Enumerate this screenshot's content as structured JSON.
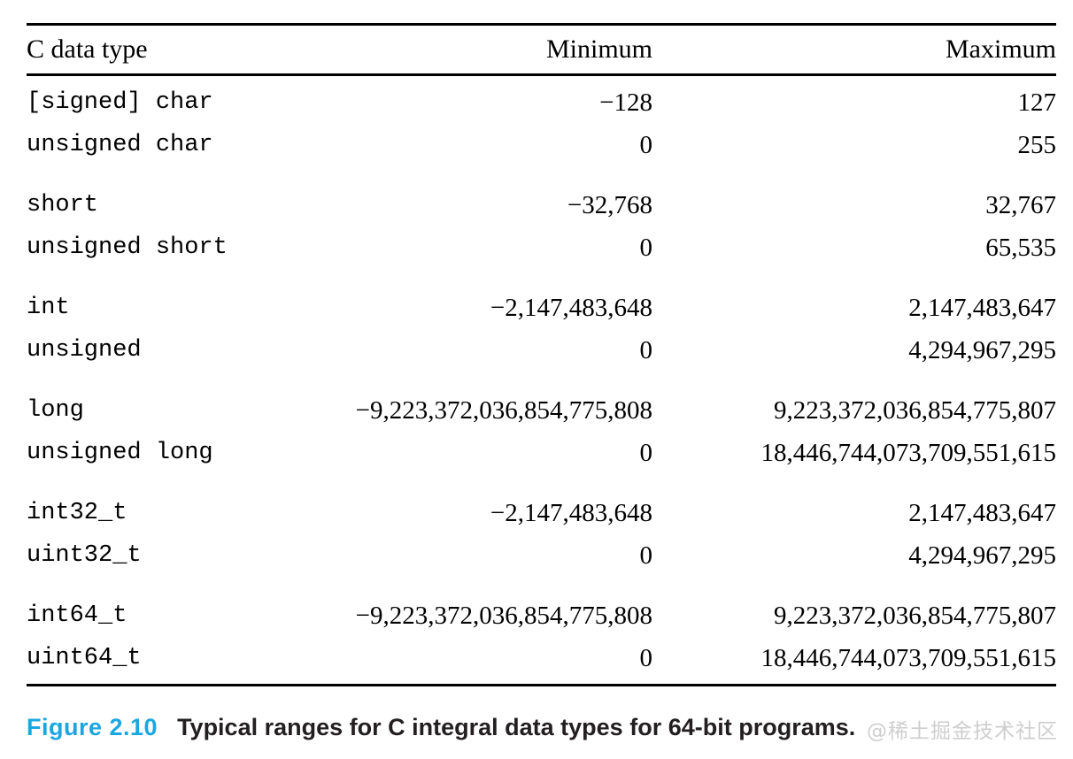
{
  "table": {
    "headers": {
      "type": "C data type",
      "min": "Minimum",
      "max": "Maximum"
    },
    "groups": [
      [
        {
          "type": "[signed] char",
          "min": "−128",
          "max": "127"
        },
        {
          "type": "unsigned char",
          "min": "0",
          "max": "255"
        }
      ],
      [
        {
          "type": "short",
          "min": "−32,768",
          "max": "32,767"
        },
        {
          "type": "unsigned short",
          "min": "0",
          "max": "65,535"
        }
      ],
      [
        {
          "type": "int",
          "min": "−2,147,483,648",
          "max": "2,147,483,647"
        },
        {
          "type": "unsigned",
          "min": "0",
          "max": "4,294,967,295"
        }
      ],
      [
        {
          "type": "long",
          "min": "−9,223,372,036,854,775,808",
          "max": "9,223,372,036,854,775,807"
        },
        {
          "type": "unsigned long",
          "min": "0",
          "max": "18,446,744,073,709,551,615"
        }
      ],
      [
        {
          "type": "int32_t",
          "min": "−2,147,483,648",
          "max": "2,147,483,647"
        },
        {
          "type": "uint32_t",
          "min": "0",
          "max": "4,294,967,295"
        }
      ],
      [
        {
          "type": "int64_t",
          "min": "−9,223,372,036,854,775,808",
          "max": "9,223,372,036,854,775,807"
        },
        {
          "type": "uint64_t",
          "min": "0",
          "max": "18,446,744,073,709,551,615"
        }
      ]
    ]
  },
  "caption": {
    "label": "Figure 2.10",
    "text": "Typical ranges for C integral data types for 64-bit programs.",
    "label_color": "#1ca6e0",
    "text_color": "#231f20"
  },
  "watermark": {
    "text": "@稀土掘金技术社区",
    "color": "#c6c6c6"
  }
}
